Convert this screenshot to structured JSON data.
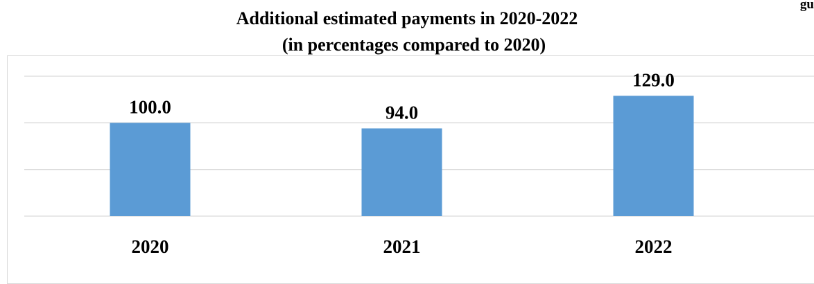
{
  "corner_label": "gu",
  "chart_data": {
    "type": "bar",
    "title": "Additional estimated payments in 2020-2022",
    "subtitle": "(in percentages compared to 2020)",
    "categories": [
      "2020",
      "2021",
      "2022"
    ],
    "values": [
      100.0,
      94.0,
      129.0
    ],
    "value_labels": [
      "100.0",
      "94.0",
      "129.0"
    ],
    "ylim": [
      0,
      150
    ],
    "grid": true,
    "legend": "none",
    "bar_color": "#5b9bd5",
    "grid_color": "#d9d9d9"
  }
}
